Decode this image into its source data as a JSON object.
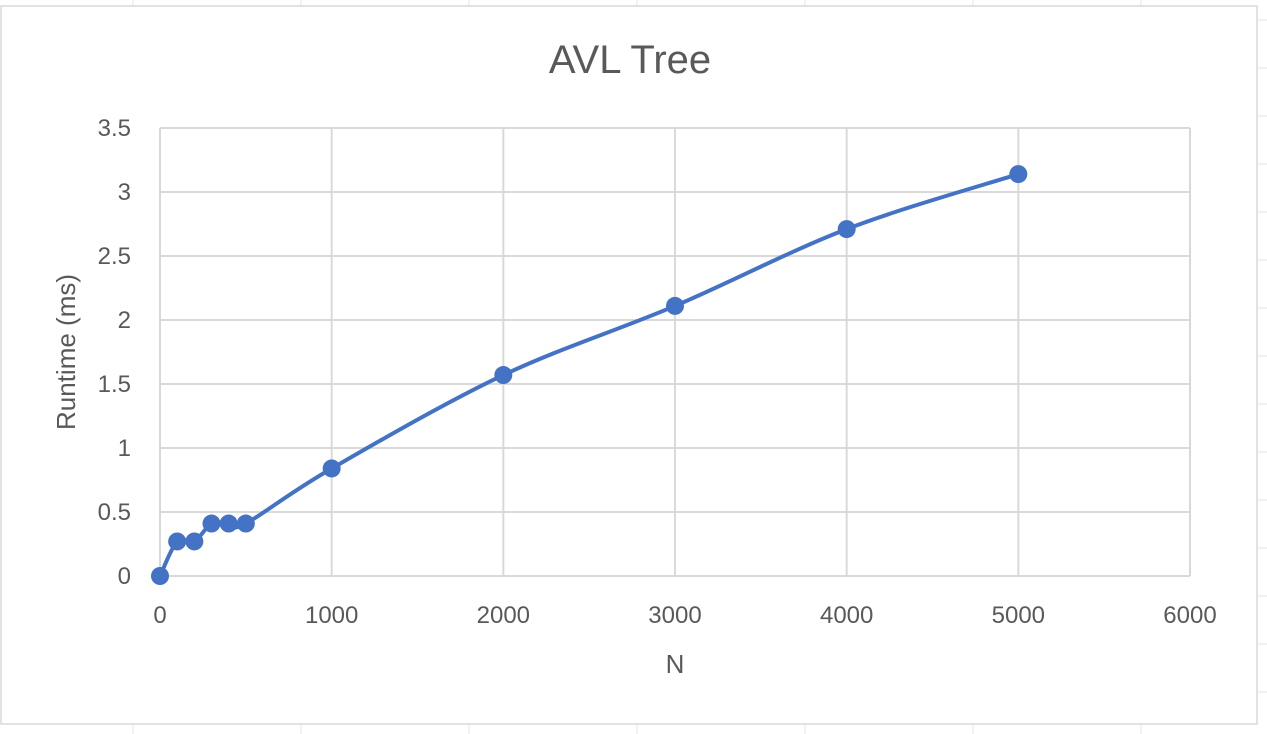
{
  "chart_data": {
    "type": "scatter",
    "title": "AVL Tree",
    "xlabel": "N",
    "ylabel": "Runtime (ms)",
    "xlim": [
      0,
      6000
    ],
    "ylim": [
      0,
      3.5
    ],
    "x_ticks": [
      "0",
      "1000",
      "2000",
      "3000",
      "4000",
      "5000",
      "6000"
    ],
    "y_ticks": [
      "0",
      "0.5",
      "1",
      "1.5",
      "2",
      "2.5",
      "3",
      "3.5"
    ],
    "grid": true,
    "legend": "none",
    "smooth_line": true,
    "series": [
      {
        "color": "#4472C4",
        "points": [
          {
            "x": 0,
            "y": 0
          },
          {
            "x": 100,
            "y": 0.27
          },
          {
            "x": 200,
            "y": 0.27
          },
          {
            "x": 300,
            "y": 0.41
          },
          {
            "x": 400,
            "y": 0.41
          },
          {
            "x": 500,
            "y": 0.41
          },
          {
            "x": 1000,
            "y": 0.84
          },
          {
            "x": 2000,
            "y": 1.57
          },
          {
            "x": 3000,
            "y": 2.11
          },
          {
            "x": 4000,
            "y": 2.71
          },
          {
            "x": 5000,
            "y": 3.14
          }
        ]
      }
    ]
  }
}
